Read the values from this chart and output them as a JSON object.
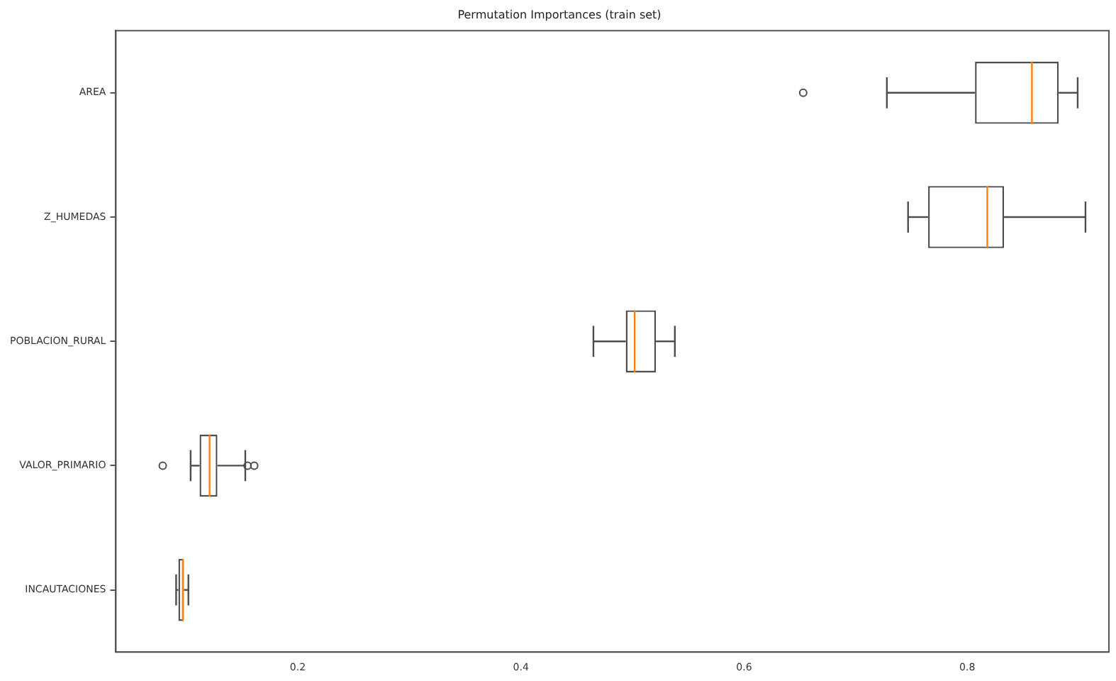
{
  "chart_data": {
    "type": "box",
    "title": "Permutation Importances (train set)",
    "orientation": "horizontal",
    "categories": [
      "AREA",
      "Z_HUMEDAS",
      "POBLACION_RURAL",
      "VALOR_PRIMARIO",
      "INCAUTACIONES"
    ],
    "boxes": [
      {
        "low": 0.728,
        "q1": 0.807,
        "median": 0.858,
        "q3": 0.882,
        "high": 0.899,
        "outliers": [
          0.653
        ]
      },
      {
        "low": 0.747,
        "q1": 0.765,
        "median": 0.818,
        "q3": 0.833,
        "high": 0.906
      },
      {
        "low": 0.465,
        "q1": 0.494,
        "median": 0.502,
        "q3": 0.521,
        "high": 0.538
      },
      {
        "low": 0.104,
        "q1": 0.112,
        "median": 0.121,
        "q3": 0.128,
        "high": 0.153,
        "outliers": [
          0.079,
          0.155,
          0.161
        ]
      },
      {
        "low": 0.091,
        "q1": 0.093,
        "median": 0.097,
        "q3": 0.098,
        "high": 0.102
      }
    ],
    "xlim": [
      0.037,
      0.927
    ],
    "xticks": [
      0.2,
      0.4,
      0.6,
      0.8
    ],
    "grid": false
  }
}
